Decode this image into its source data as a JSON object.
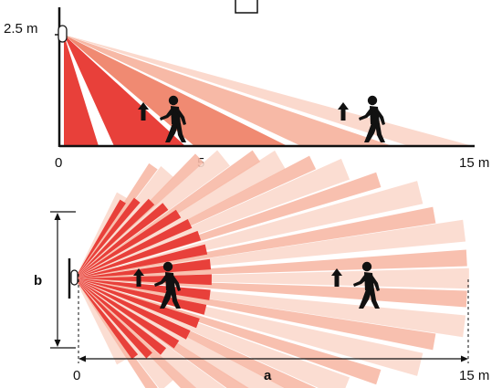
{
  "colors": {
    "zone_dark": "#e8403a",
    "zone_mid": "#f08a72",
    "zone_light": "#f7b9a6",
    "zone_pale": "#fbd9cd",
    "axis": "#111111"
  },
  "icons": {
    "person": "walking-person-icon",
    "arrow": "direction-arrow-icon",
    "detector": "motion-detector-icon"
  },
  "side_view": {
    "height_label": "2.5 m",
    "tick_start": "0",
    "tick_mid": "5",
    "tick_end": "15 m"
  },
  "top_view": {
    "width_label": "b",
    "length_label": "a",
    "tick_start": "0",
    "tick_end": "15 m"
  }
}
